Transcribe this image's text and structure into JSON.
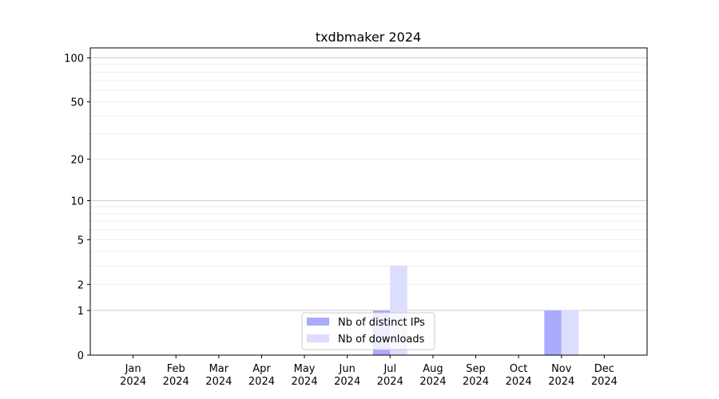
{
  "chart_data": {
    "type": "bar",
    "title": "txdbmaker 2024",
    "xlabel": "",
    "ylabel": "",
    "y_scale": "log(1+y)",
    "ylim": [
      0,
      117
    ],
    "grid": true,
    "legend_placement": "bottom-center",
    "categories": [
      "Jan\n2024",
      "Feb\n2024",
      "Mar\n2024",
      "Apr\n2024",
      "May\n2024",
      "Jun\n2024",
      "Jul\n2024",
      "Aug\n2024",
      "Sep\n2024",
      "Oct\n2024",
      "Nov\n2024",
      "Dec\n2024"
    ],
    "y_ticks": [
      0,
      1,
      2,
      5,
      10,
      20,
      50,
      100
    ],
    "series": [
      {
        "name": "Nb of distinct IPs",
        "color": "#aaaaff",
        "values": [
          0,
          0,
          0,
          0,
          0,
          0,
          1,
          0,
          0,
          0,
          1,
          0
        ]
      },
      {
        "name": "Nb of downloads",
        "color": "#ddddff",
        "values": [
          0,
          0,
          0,
          0,
          0,
          0,
          3,
          0,
          0,
          0,
          1,
          0
        ]
      }
    ]
  }
}
